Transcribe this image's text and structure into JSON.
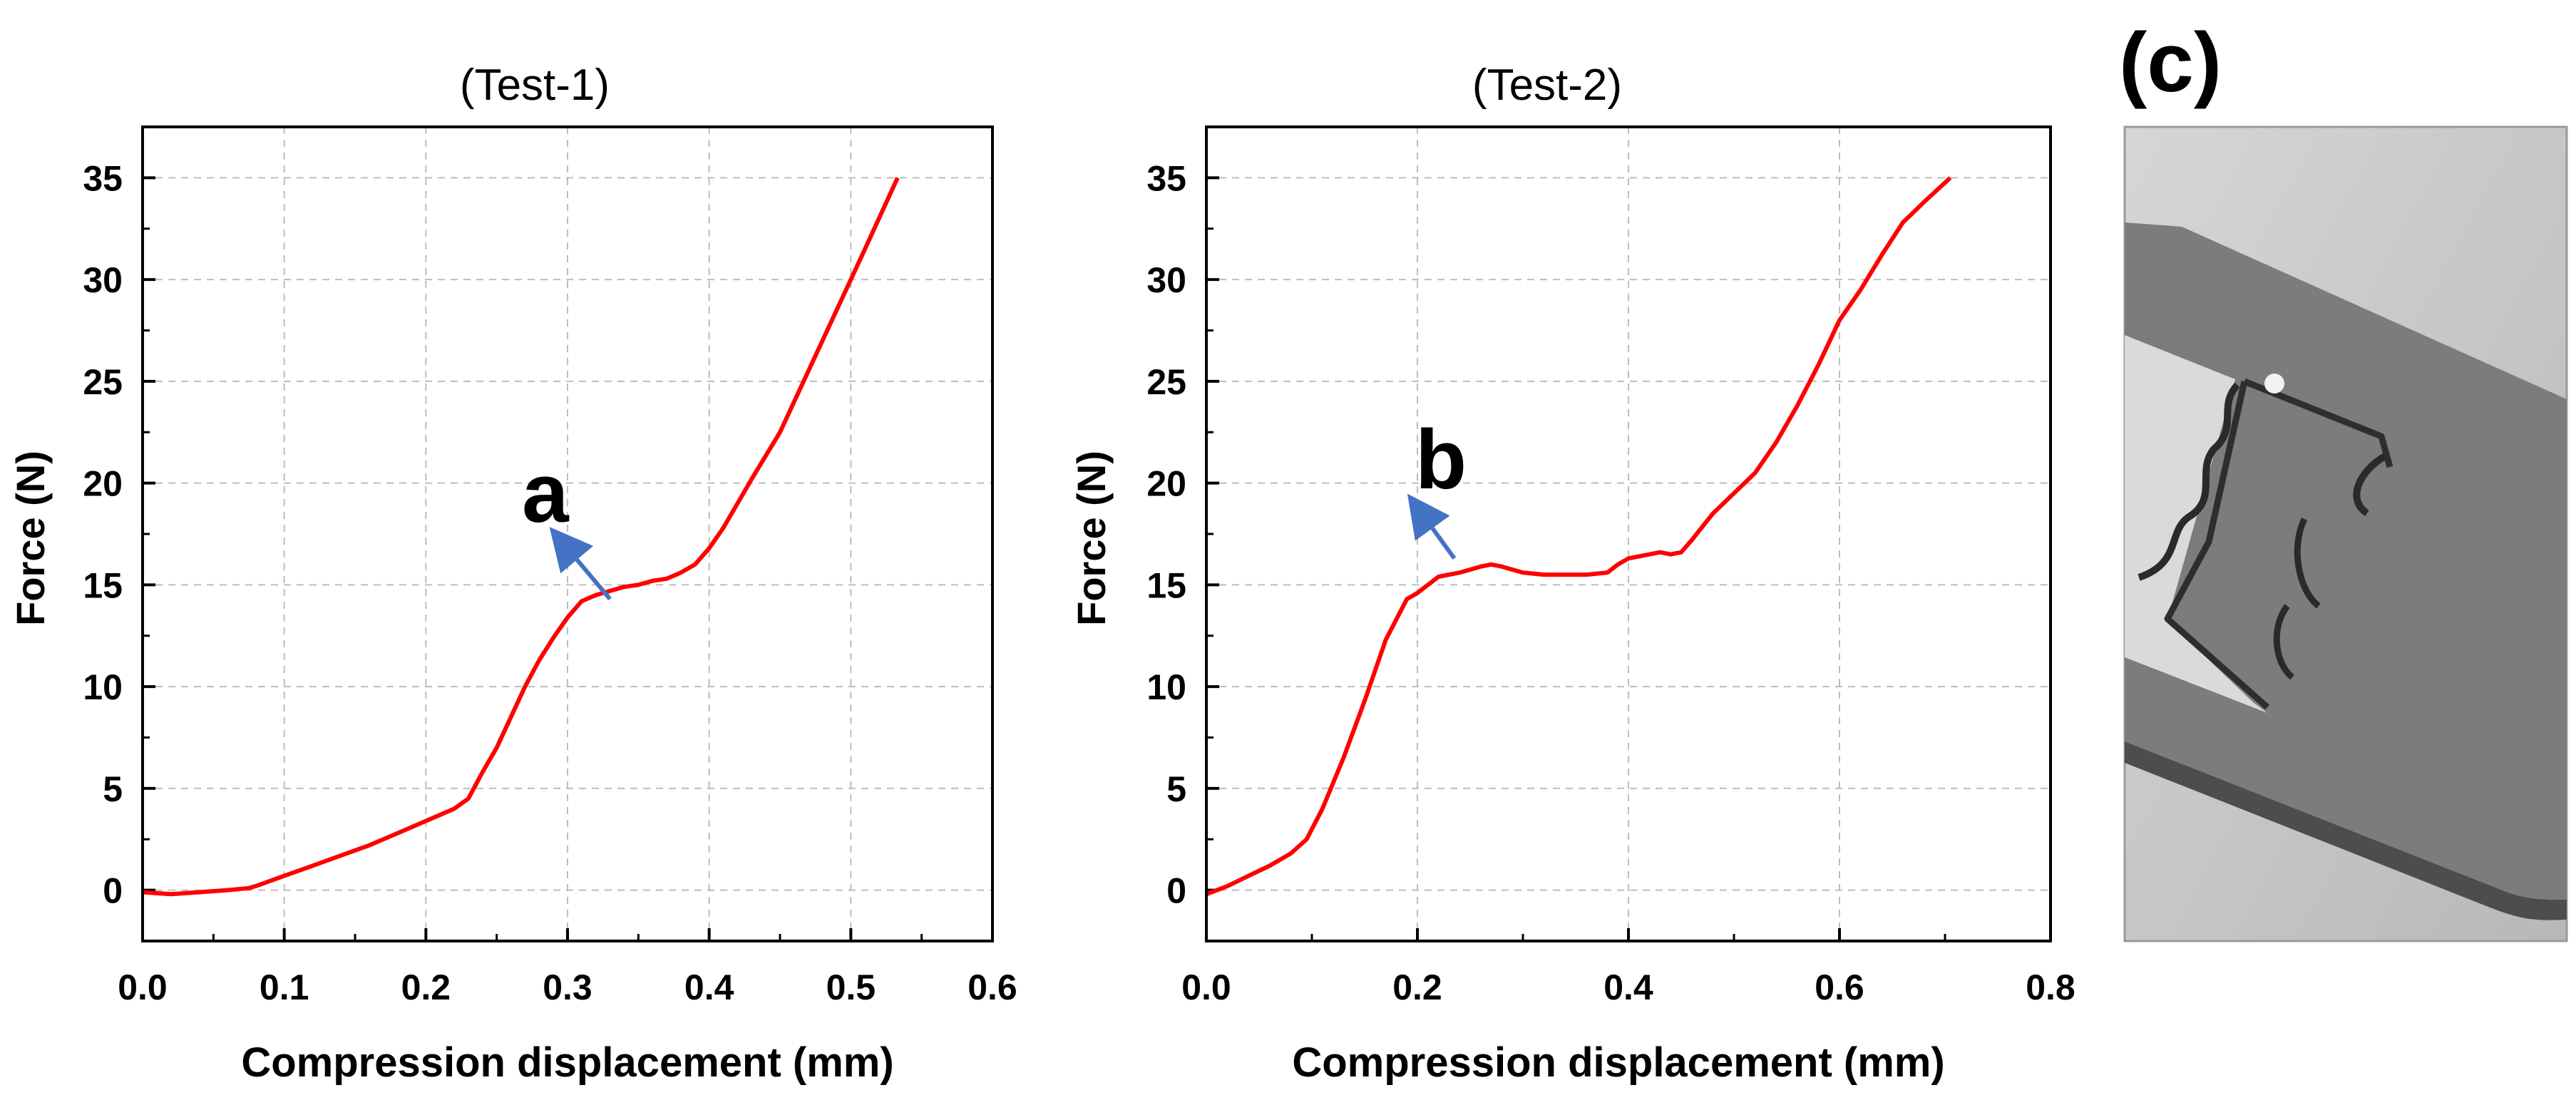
{
  "colors": {
    "curve": "#ff0000",
    "arrow": "#4472c4",
    "grid": "#bdbdbd",
    "axis": "#000000",
    "photo_bg": "#c8c8c8",
    "plate": "#7f7f7f"
  },
  "photo": {
    "panel_label": "(c)",
    "icon": "photo-icon"
  },
  "chart_data": [
    {
      "type": "line",
      "title": "(Test-1)",
      "xlabel": "Compression displacement (mm)",
      "ylabel": "Force (N)",
      "xlim": [
        0.0,
        0.6
      ],
      "ylim": [
        -2.5,
        37.5
      ],
      "xticks": [
        0.0,
        0.1,
        0.2,
        0.3,
        0.4,
        0.5,
        0.6
      ],
      "xtick_labels": [
        "0.0",
        "0.1",
        "0.2",
        "0.3",
        "0.4",
        "0.5",
        "0.6"
      ],
      "yticks": [
        0,
        5,
        10,
        15,
        20,
        25,
        30,
        35
      ],
      "ytick_labels": [
        "0",
        "5",
        "10",
        "15",
        "20",
        "25",
        "30",
        "35"
      ],
      "grid": true,
      "series": [
        {
          "name": "Test-1",
          "x": [
            0.0,
            0.02,
            0.04,
            0.06,
            0.075,
            0.08,
            0.1,
            0.12,
            0.14,
            0.16,
            0.18,
            0.2,
            0.22,
            0.23,
            0.24,
            0.25,
            0.26,
            0.27,
            0.28,
            0.29,
            0.3,
            0.31,
            0.32,
            0.33,
            0.34,
            0.35,
            0.36,
            0.37,
            0.38,
            0.39,
            0.4,
            0.41,
            0.42,
            0.43,
            0.45,
            0.47,
            0.49,
            0.51,
            0.533
          ],
          "y": [
            -0.1,
            -0.2,
            -0.1,
            0.0,
            0.1,
            0.2,
            0.7,
            1.2,
            1.7,
            2.2,
            2.8,
            3.4,
            4.0,
            4.5,
            5.8,
            7.0,
            8.5,
            10.0,
            11.3,
            12.4,
            13.4,
            14.2,
            14.5,
            14.7,
            14.9,
            15.0,
            15.2,
            15.3,
            15.6,
            16.0,
            16.8,
            17.8,
            19.0,
            20.2,
            22.5,
            25.5,
            28.5,
            31.5,
            35.0
          ]
        }
      ],
      "annotation": {
        "text": "a",
        "x": 0.33,
        "y": 14.3,
        "arrow_to_x": 0.295,
        "arrow_to_y": 17.2
      }
    },
    {
      "type": "line",
      "title": "(Test-2)",
      "xlabel": "Compression displacement (mm)",
      "ylabel": "Force (N)",
      "xlim": [
        0.0,
        0.8
      ],
      "ylim": [
        -2.5,
        37.5
      ],
      "xticks": [
        0.0,
        0.2,
        0.4,
        0.6,
        0.8
      ],
      "xtick_labels": [
        "0.0",
        "0.2",
        "0.4",
        "0.6",
        "0.8"
      ],
      "yticks": [
        0,
        5,
        10,
        15,
        20,
        25,
        30,
        35
      ],
      "ytick_labels": [
        "0",
        "5",
        "10",
        "15",
        "20",
        "25",
        "30",
        "35"
      ],
      "grid": true,
      "series": [
        {
          "name": "Test-2",
          "x": [
            0.0,
            0.02,
            0.04,
            0.06,
            0.08,
            0.095,
            0.11,
            0.13,
            0.15,
            0.17,
            0.19,
            0.2,
            0.21,
            0.22,
            0.24,
            0.26,
            0.27,
            0.28,
            0.3,
            0.32,
            0.34,
            0.36,
            0.38,
            0.39,
            0.4,
            0.42,
            0.43,
            0.44,
            0.45,
            0.46,
            0.48,
            0.5,
            0.52,
            0.54,
            0.56,
            0.58,
            0.6,
            0.62,
            0.64,
            0.66,
            0.68,
            0.705
          ],
          "y": [
            -0.2,
            0.2,
            0.7,
            1.2,
            1.8,
            2.5,
            4.0,
            6.5,
            9.3,
            12.3,
            14.3,
            14.6,
            15.0,
            15.4,
            15.6,
            15.9,
            16.0,
            15.9,
            15.6,
            15.5,
            15.5,
            15.5,
            15.6,
            16.0,
            16.3,
            16.5,
            16.6,
            16.5,
            16.6,
            17.2,
            18.5,
            19.5,
            20.5,
            22.0,
            23.8,
            25.8,
            28.0,
            29.5,
            31.2,
            32.8,
            33.8,
            35.0
          ]
        }
      ],
      "annotation": {
        "text": "b",
        "x": 0.235,
        "y": 16.3,
        "arrow_to_x": 0.2,
        "arrow_to_y": 18.8
      }
    }
  ]
}
